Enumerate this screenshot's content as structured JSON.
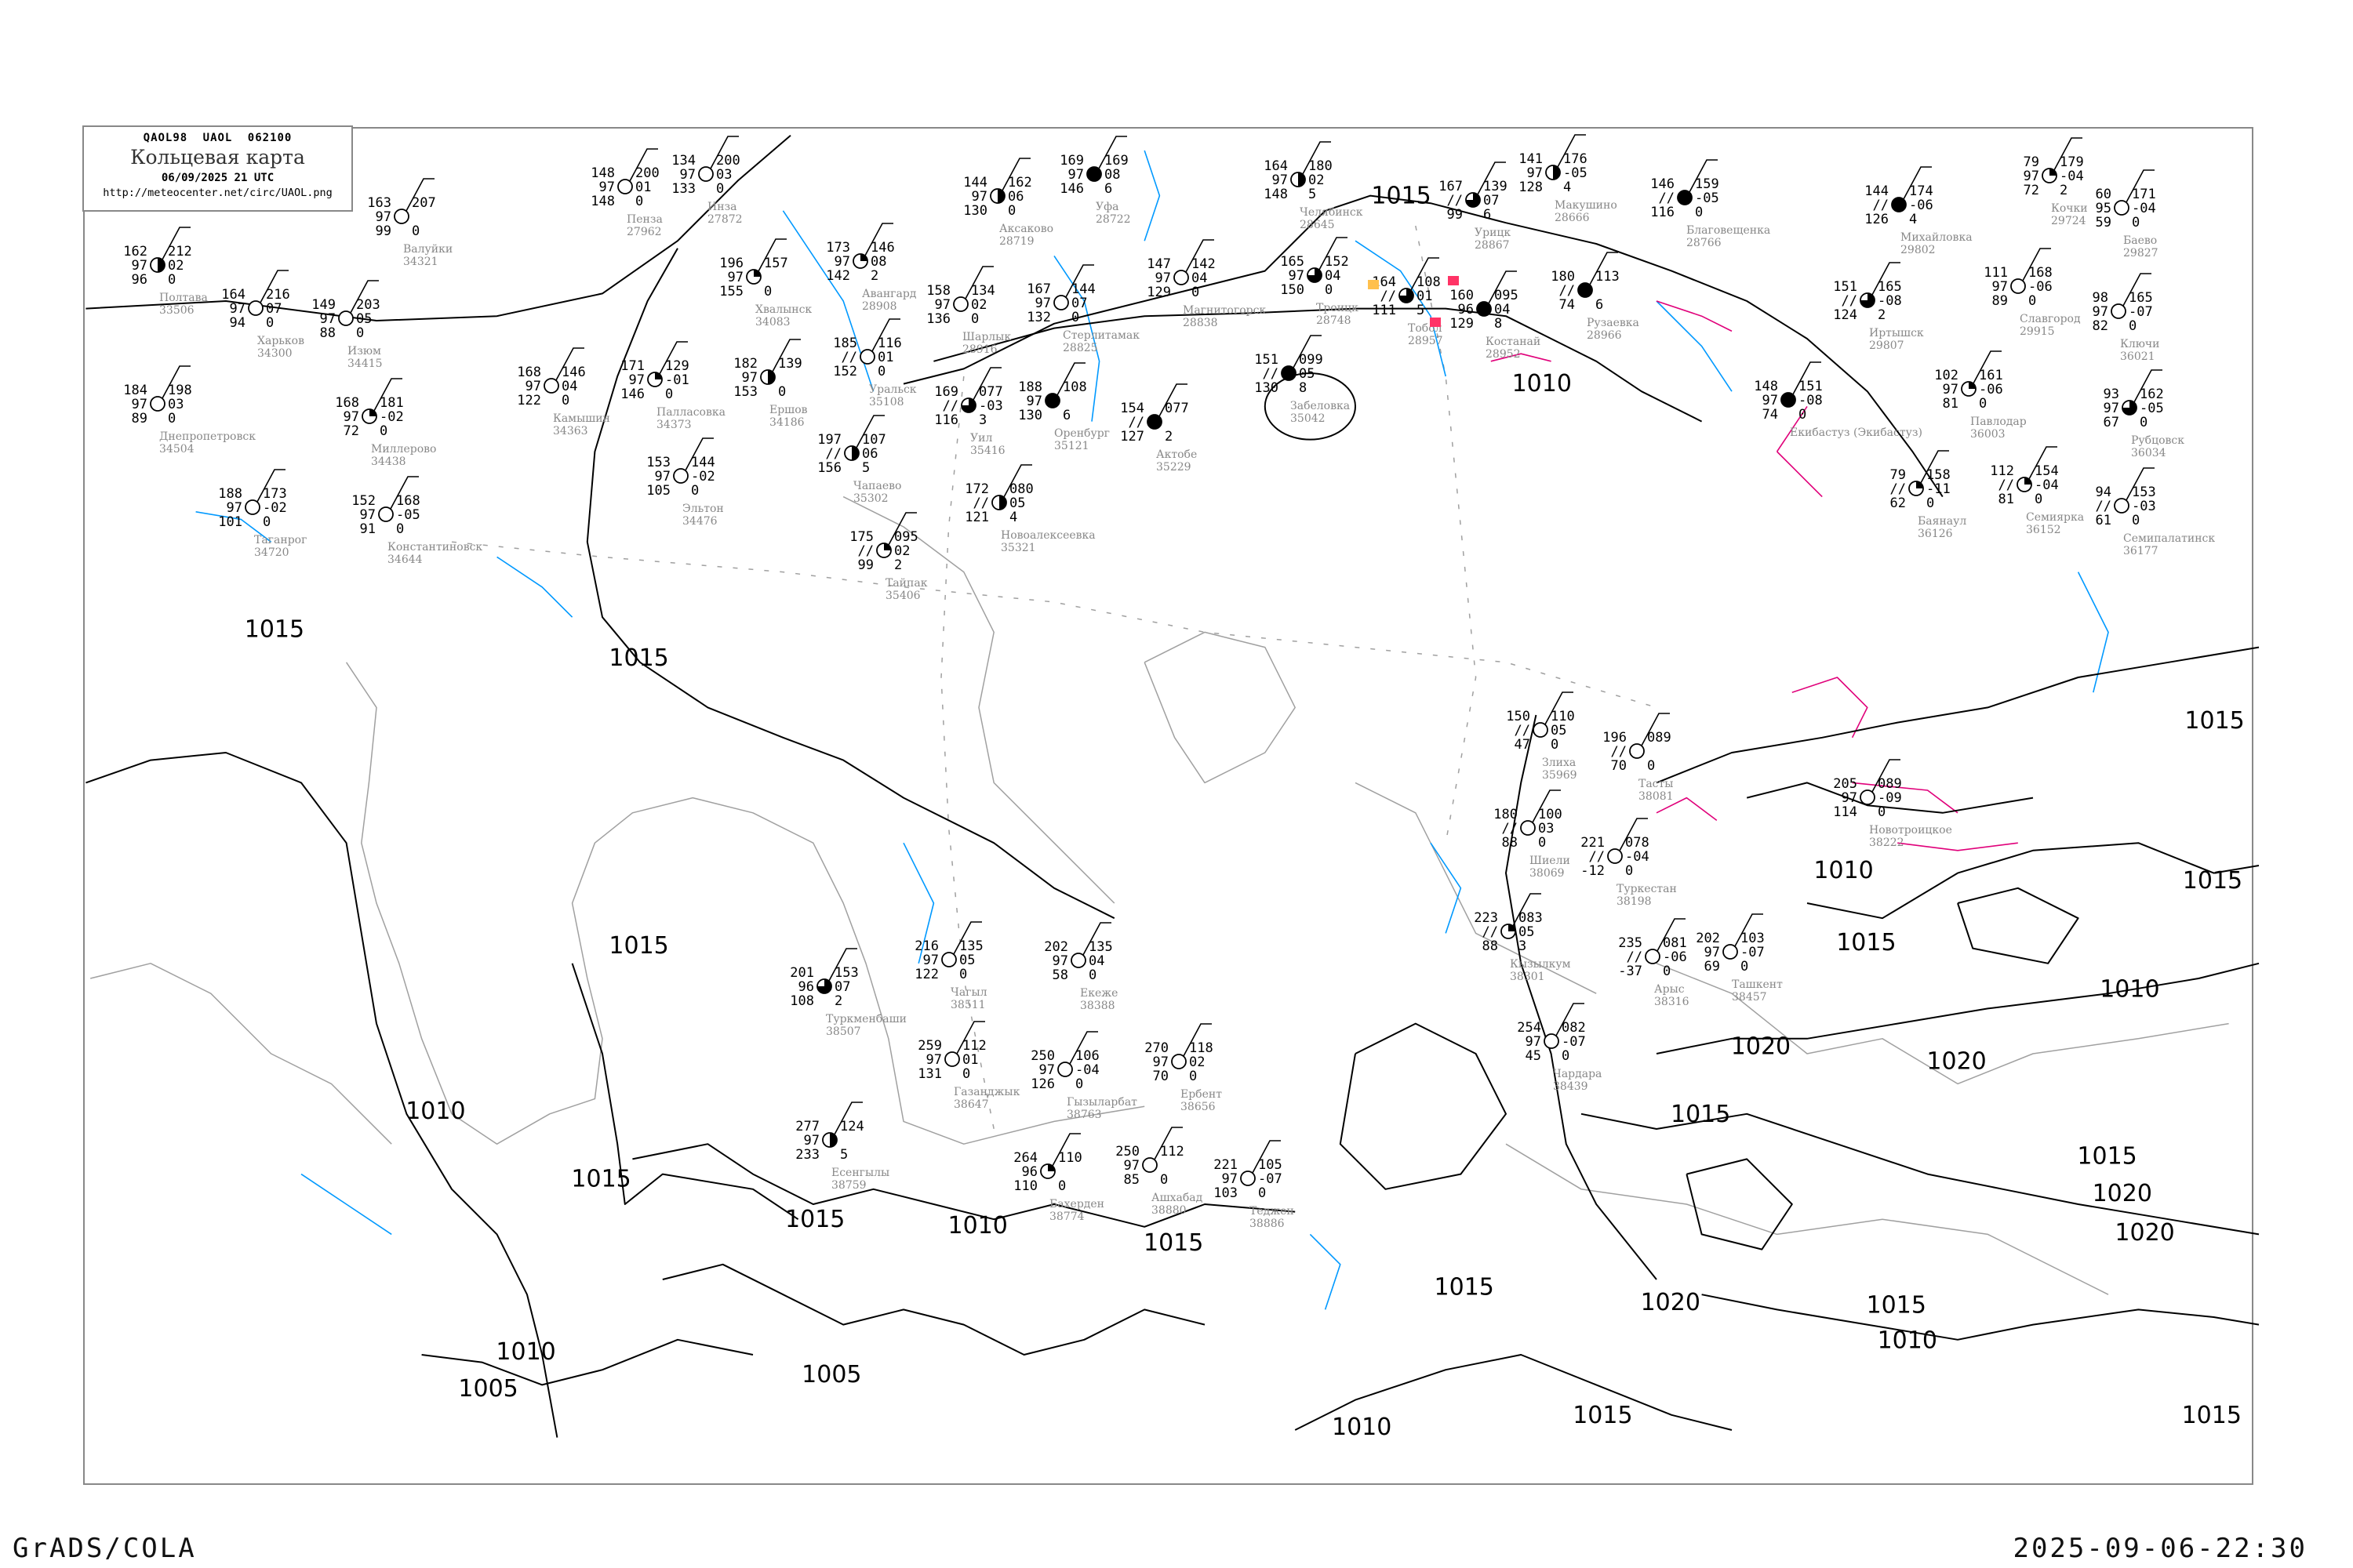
{
  "header": {
    "code_line": "QAOL98  UAOL  062100",
    "title": "Кольцевая карта",
    "datetime": "06/09/2025 21 UTC",
    "url": "http://meteocenter.net/circ/UAOL.png"
  },
  "footer": {
    "left": "GrADS/COLA",
    "right": "2025-09-06-22:30"
  },
  "colors": {
    "isobar": "#000000",
    "coastline": "#a0a0a0",
    "river": "#0099ff",
    "front_magenta": "#e0007a",
    "frame": "#888888",
    "station_name": "#888888",
    "marker_red": "#ff3366",
    "marker_orange": "#ffc04d"
  },
  "isobar_labels": [
    "1015",
    "1015",
    "1015",
    "1010",
    "1015",
    "1015",
    "1010",
    "1010",
    "1005",
    "1005",
    "1015",
    "1010",
    "1015",
    "1015",
    "1020",
    "1015",
    "1010",
    "1015",
    "1010",
    "1020",
    "1015",
    "1020",
    "1020",
    "1015",
    "1015",
    "1015",
    "1010",
    "1020",
    "1015",
    "1010",
    "1015"
  ],
  "stations": [
    {
      "name": "Челябинск",
      "id": "28645",
      "tl": "164",
      "ml": "97",
      "bl": "148",
      "tr": "180",
      "mr": "02",
      "br": "5",
      "cover": 0.5
    },
    {
      "name": "Троицк",
      "id": "28748",
      "tl": "165",
      "ml": "97",
      "bl": "150",
      "tr": "152",
      "mr": "04",
      "br": "0",
      "cover": 0.75
    },
    {
      "name": "Магнитогорск",
      "id": "28838",
      "tl": "147",
      "ml": "97",
      "bl": "129",
      "tr": "142",
      "mr": "04",
      "br": "0",
      "cover": 0
    },
    {
      "name": "Тобол",
      "id": "28957",
      "tl": "164",
      "ml": "//",
      "bl": "111",
      "tr": "108",
      "mr": "01",
      "br": "5",
      "cover": 0.75
    },
    {
      "name": "Забеловка",
      "id": "35042",
      "tl": "151",
      "ml": "//",
      "bl": "130",
      "tr": "099",
      "mr": "05",
      "br": "8",
      "cover": 1
    },
    {
      "name": "Костанай",
      "id": "28952",
      "tl": "160",
      "ml": "96",
      "bl": "129",
      "tr": "095",
      "mr": "04",
      "br": "8",
      "cover": 1
    },
    {
      "name": "Урицк",
      "id": "28867",
      "tl": "167",
      "ml": "//",
      "bl": "99",
      "tr": "139",
      "mr": "07",
      "br": "6",
      "cover": 0.75
    },
    {
      "name": "Рузаевка",
      "id": "28966",
      "tl": "180",
      "ml": "//",
      "bl": "74",
      "tr": "113",
      "mr": "",
      "br": "6",
      "cover": 1
    },
    {
      "name": "Макушино",
      "id": "28666",
      "tl": "141",
      "ml": "97",
      "bl": "128",
      "tr": "176",
      "mr": "-05",
      "br": "4",
      "cover": 0.5
    },
    {
      "name": "Благовещенка",
      "id": "28766",
      "tl": "146",
      "ml": "//",
      "bl": "116",
      "tr": "159",
      "mr": "-05",
      "br": "0",
      "cover": 1
    },
    {
      "name": "Чагыл",
      "id": "38511",
      "tl": "216",
      "ml": "97",
      "bl": "122",
      "tr": "135",
      "mr": "05",
      "br": "0",
      "cover": 0
    },
    {
      "name": "Екеже",
      "id": "38388",
      "tl": "202",
      "ml": "97",
      "bl": "58",
      "tr": "135",
      "mr": "04",
      "br": "0",
      "cover": 0
    },
    {
      "name": "Туркменбаши",
      "id": "38507",
      "tl": "201",
      "ml": "96",
      "bl": "108",
      "tr": "153",
      "mr": "07",
      "br": "2",
      "cover": 0.75
    },
    {
      "name": "Газанджык",
      "id": "38647",
      "tl": "259",
      "ml": "97",
      "bl": "131",
      "tr": "112",
      "mr": "01",
      "br": "0",
      "cover": 0
    },
    {
      "name": "Гызыларбат",
      "id": "38763",
      "tl": "250",
      "ml": "97",
      "bl": "126",
      "tr": "106",
      "mr": "-04",
      "br": "0",
      "cover": 0
    },
    {
      "name": "Ербент",
      "id": "38656",
      "tl": "270",
      "ml": "97",
      "bl": "70",
      "tr": "118",
      "mr": "02",
      "br": "0",
      "cover": 0
    },
    {
      "name": "Бахерден",
      "id": "38774",
      "tl": "264",
      "ml": "96",
      "bl": "110",
      "tr": "110",
      "mr": "",
      "br": "0",
      "cover": 0.25
    },
    {
      "name": "Ашхабад",
      "id": "38880",
      "tl": "250",
      "ml": "97",
      "bl": "85",
      "tr": "112",
      "mr": "",
      "br": "0",
      "cover": 0
    },
    {
      "name": "Есенгылы",
      "id": "38759",
      "tl": "277",
      "ml": "97",
      "bl": "233",
      "tr": "124",
      "mr": "",
      "br": "5",
      "cover": 0.5
    },
    {
      "name": "Теджен",
      "id": "38886",
      "tl": "221",
      "ml": "97",
      "bl": "103",
      "tr": "105",
      "mr": "-07",
      "br": "0",
      "cover": 0
    },
    {
      "name": "Полтава",
      "id": "33506",
      "tl": "162",
      "ml": "97",
      "bl": "96",
      "tr": "212",
      "mr": "02",
      "br": "0",
      "cover": 0.5
    },
    {
      "name": "Харьков",
      "id": "34300",
      "tl": "164",
      "ml": "97",
      "bl": "94",
      "tr": "216",
      "mr": "07",
      "br": "0",
      "cover": 0
    },
    {
      "name": "Днепропетровск",
      "id": "34504",
      "tl": "184",
      "ml": "97",
      "bl": "89",
      "tr": "198",
      "mr": "03",
      "br": "0",
      "cover": 0
    },
    {
      "name": "Изюм",
      "id": "34415",
      "tl": "149",
      "ml": "97",
      "bl": "88",
      "tr": "203",
      "mr": "05",
      "br": "0",
      "cover": 0
    },
    {
      "name": "Валуйки",
      "id": "34321",
      "tl": "163",
      "ml": "97",
      "bl": "99",
      "tr": "207",
      "mr": "",
      "br": "0",
      "cover": 0
    },
    {
      "name": "Миллерово",
      "id": "34438",
      "tl": "168",
      "ml": "97",
      "bl": "72",
      "tr": "181",
      "mr": "-02",
      "br": "0",
      "cover": 0.25
    },
    {
      "name": "Таганрог",
      "id": "34720",
      "tl": "188",
      "ml": "97",
      "bl": "101",
      "tr": "173",
      "mr": "-02",
      "br": "0",
      "cover": 0
    },
    {
      "name": "Константиновск",
      "id": "34644",
      "tl": "152",
      "ml": "97",
      "bl": "91",
      "tr": "168",
      "mr": "-05",
      "br": "0",
      "cover": 0
    },
    {
      "name": "Кочки",
      "id": "29724",
      "tl": "79",
      "ml": "97",
      "bl": "72",
      "tr": "179",
      "mr": "-04",
      "br": "2",
      "cover": 0.25
    },
    {
      "name": "Михайловка",
      "id": "29802",
      "tl": "144",
      "ml": "//",
      "bl": "126",
      "tr": "174",
      "mr": "-06",
      "br": "4",
      "cover": 1
    },
    {
      "name": "Иртышск",
      "id": "29807",
      "tl": "151",
      "ml": "//",
      "bl": "124",
      "tr": "165",
      "mr": "-08",
      "br": "2",
      "cover": 0.75
    },
    {
      "name": "Баево",
      "id": "29827",
      "tl": "60",
      "ml": "95",
      "bl": "59",
      "tr": "171",
      "mr": "-04",
      "br": "0",
      "cover": 0
    },
    {
      "name": "Славгород",
      "id": "29915",
      "tl": "111",
      "ml": "97",
      "bl": "89",
      "tr": "168",
      "mr": "-06",
      "br": "0",
      "cover": 0
    },
    {
      "name": "Ключи",
      "id": "36021",
      "tl": "98",
      "ml": "97",
      "bl": "82",
      "tr": "165",
      "mr": "-07",
      "br": "0",
      "cover": 0
    },
    {
      "name": "Павлодар",
      "id": "36003",
      "tl": "102",
      "ml": "97",
      "bl": "81",
      "tr": "161",
      "mr": "-06",
      "br": "0",
      "cover": 0.25
    },
    {
      "name": "Рубцовск",
      "id": "36034",
      "tl": "93",
      "ml": "97",
      "bl": "67",
      "tr": "162",
      "mr": "-05",
      "br": "0",
      "cover": 0.75
    },
    {
      "name": "Екибастуз (Экибастуз)",
      "id": "",
      "tl": "148",
      "ml": "97",
      "bl": "74",
      "tr": "151",
      "mr": "-08",
      "br": "0",
      "cover": 1
    },
    {
      "name": "Баянаул",
      "id": "36126",
      "tl": "79",
      "ml": "//",
      "bl": "62",
      "tr": "158",
      "mr": "-11",
      "br": "0",
      "cover": 0.25
    },
    {
      "name": "Семиярка",
      "id": "36152",
      "tl": "112",
      "ml": "//",
      "bl": "81",
      "tr": "154",
      "mr": "-04",
      "br": "0",
      "cover": 0.25
    },
    {
      "name": "Семипалатинск",
      "id": "36177",
      "tl": "94",
      "ml": "//",
      "bl": "61",
      "tr": "153",
      "mr": "-03",
      "br": "0",
      "cover": 0
    },
    {
      "name": "Злиха",
      "id": "35969",
      "tl": "150",
      "ml": "//",
      "bl": "47",
      "tr": "110",
      "mr": "05",
      "br": "0",
      "cover": 0
    },
    {
      "name": "Тасты",
      "id": "38081",
      "tl": "196",
      "ml": "//",
      "bl": "70",
      "tr": "089",
      "mr": "",
      "br": "0",
      "cover": 0
    },
    {
      "name": "Шиели",
      "id": "38069",
      "tl": "180",
      "ml": "//",
      "bl": "88",
      "tr": "100",
      "mr": "03",
      "br": "0",
      "cover": 0
    },
    {
      "name": "Туркестан",
      "id": "38198",
      "tl": "221",
      "ml": "//",
      "bl": "-12",
      "tr": "078",
      "mr": "-04",
      "br": "0",
      "cover": 0
    },
    {
      "name": "Кызылкум",
      "id": "38301",
      "tl": "223",
      "ml": "//",
      "bl": "88",
      "tr": "083",
      "mr": "05",
      "br": "3",
      "cover": 0.25
    },
    {
      "name": "Арыс",
      "id": "38316",
      "tl": "235",
      "ml": "//",
      "bl": "-37",
      "tr": "081",
      "mr": "-06",
      "br": "0",
      "cover": 0
    },
    {
      "name": "Чардара",
      "id": "38439",
      "tl": "254",
      "ml": "97",
      "bl": "45",
      "tr": "082",
      "mr": "-07",
      "br": "0",
      "cover": 0
    },
    {
      "name": "Ташкент",
      "id": "38457",
      "tl": "202",
      "ml": "97",
      "bl": "69",
      "tr": "103",
      "mr": "-07",
      "br": "0",
      "cover": 0
    },
    {
      "name": "Новотроицкое",
      "id": "38222",
      "tl": "205",
      "ml": "97",
      "bl": "114",
      "tr": "089",
      "mr": "-09",
      "br": "0",
      "cover": 0
    },
    {
      "name": "Инза",
      "id": "27872",
      "tl": "134",
      "ml": "97",
      "bl": "133",
      "tr": "200",
      "mr": "03",
      "br": "0",
      "cover": 0
    },
    {
      "name": "Пенза",
      "id": "27962",
      "tl": "148",
      "ml": "97",
      "bl": "148",
      "tr": "200",
      "mr": "01",
      "br": "0",
      "cover": 0
    },
    {
      "name": "Уфа",
      "id": "28722",
      "tl": "169",
      "ml": "97",
      "bl": "146",
      "tr": "169",
      "mr": "08",
      "br": "6",
      "cover": 1
    },
    {
      "name": "Аксаково",
      "id": "28719",
      "tl": "144",
      "ml": "97",
      "bl": "130",
      "tr": "162",
      "mr": "06",
      "br": "0",
      "cover": 0.5
    },
    {
      "name": "Стерлитамак",
      "id": "28825",
      "tl": "167",
      "ml": "97",
      "bl": "132",
      "tr": "144",
      "mr": "07",
      "br": "0",
      "cover": 0
    },
    {
      "name": "Шарлык",
      "id": "28916",
      "tl": "158",
      "ml": "97",
      "bl": "136",
      "tr": "134",
      "mr": "02",
      "br": "0",
      "cover": 0
    },
    {
      "name": "Авангард",
      "id": "28908",
      "tl": "173",
      "ml": "97",
      "bl": "142",
      "tr": "146",
      "mr": "08",
      "br": "2",
      "cover": 0.25
    },
    {
      "name": "Хвалынск",
      "id": "34083",
      "tl": "196",
      "ml": "97",
      "bl": "155",
      "tr": "157",
      "mr": "",
      "br": "0",
      "cover": 0.25
    },
    {
      "name": "Ершов",
      "id": "34186",
      "tl": "182",
      "ml": "97",
      "bl": "153",
      "tr": "139",
      "mr": "",
      "br": "0",
      "cover": 0.5
    },
    {
      "name": "Уральск",
      "id": "35108",
      "tl": "185",
      "ml": "//",
      "bl": "152",
      "tr": "116",
      "mr": "01",
      "br": "0",
      "cover": 0
    },
    {
      "name": "Оренбург",
      "id": "35121",
      "tl": "188",
      "ml": "97",
      "bl": "130",
      "tr": "108",
      "mr": "",
      "br": "6",
      "cover": 1
    },
    {
      "name": "Палласовка",
      "id": "34373",
      "tl": "171",
      "ml": "97",
      "bl": "146",
      "tr": "129",
      "mr": "-01",
      "br": "0",
      "cover": 0.25
    },
    {
      "name": "Эльтон",
      "id": "34476",
      "tl": "153",
      "ml": "97",
      "bl": "105",
      "tr": "144",
      "mr": "-02",
      "br": "0",
      "cover": 0
    },
    {
      "name": "Актобе",
      "id": "35229",
      "tl": "154",
      "ml": "//",
      "bl": "127",
      "tr": "077",
      "mr": "",
      "br": "2",
      "cover": 1
    },
    {
      "name": "Чапаево",
      "id": "35302",
      "tl": "197",
      "ml": "//",
      "bl": "156",
      "tr": "107",
      "mr": "06",
      "br": "5",
      "cover": 0.5
    },
    {
      "name": "Новоалексеевка",
      "id": "35321",
      "tl": "172",
      "ml": "//",
      "bl": "121",
      "tr": "080",
      "mr": "05",
      "br": "4",
      "cover": 0.5
    },
    {
      "name": "Уил",
      "id": "35416",
      "tl": "169",
      "ml": "//",
      "bl": "116",
      "tr": "077",
      "mr": "-03",
      "br": "3",
      "cover": 0.75
    },
    {
      "name": "Тайпак",
      "id": "35406",
      "tl": "175",
      "ml": "//",
      "bl": "99",
      "tr": "095",
      "mr": "02",
      "br": "2",
      "cover": 0.25
    },
    {
      "name": "Камышин",
      "id": "34363",
      "tl": "168",
      "ml": "97",
      "bl": "122",
      "tr": "146",
      "mr": "04",
      "br": "0",
      "cover": 0
    }
  ]
}
